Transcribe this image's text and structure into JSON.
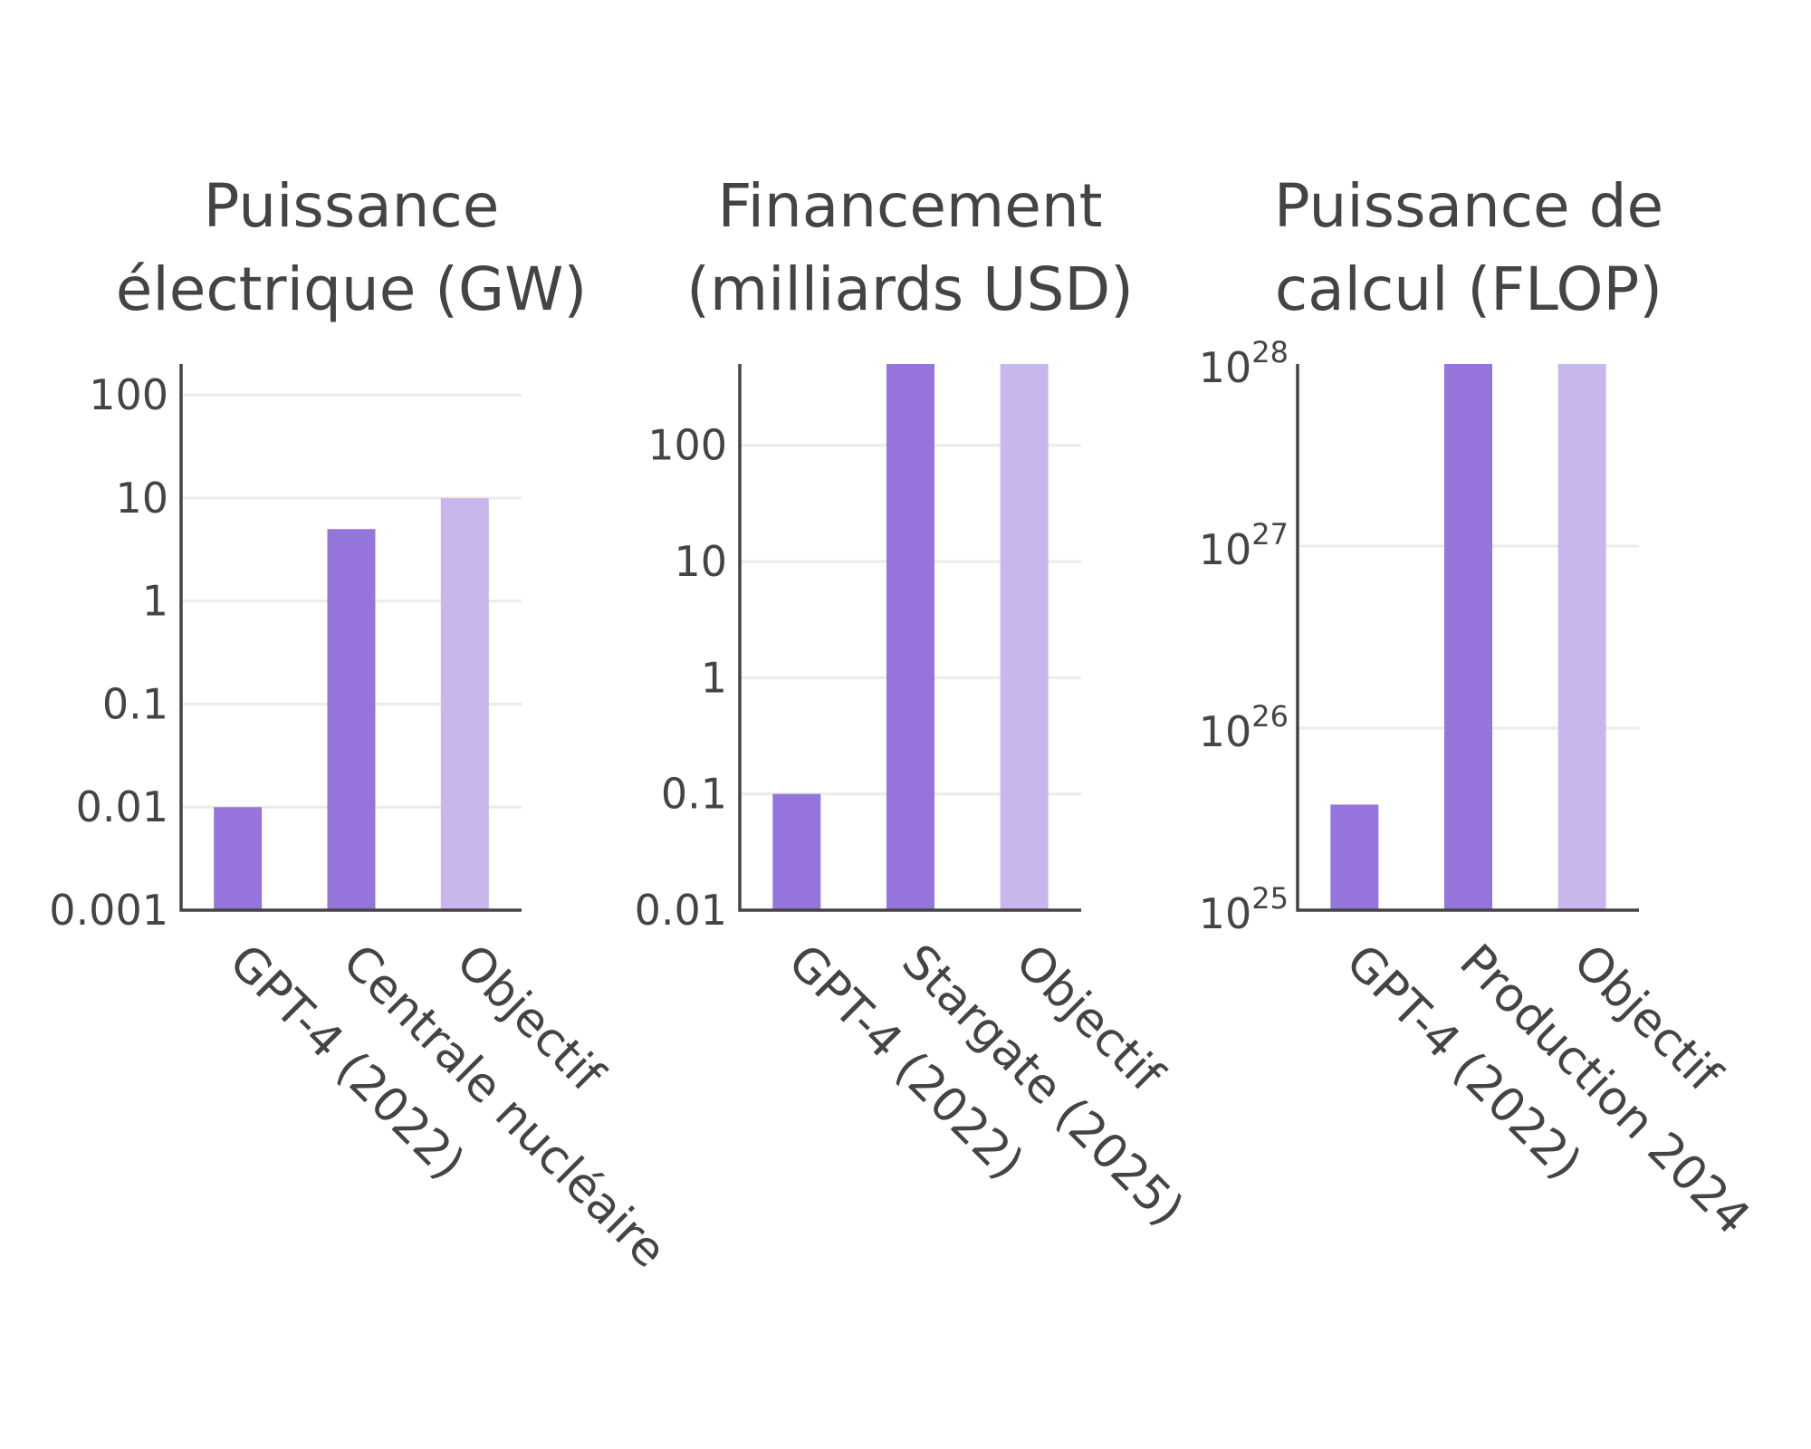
{
  "colors": {
    "primary": "#9575db",
    "target": "#c8b7ec",
    "text": "#444444",
    "grid": "#ebebeb"
  },
  "chart_data": [
    {
      "type": "bar",
      "title": [
        "Puissance",
        "électrique (GW)"
      ],
      "categories": [
        "GPT-4 (2022)",
        "Centrale nucléaire",
        "Objectif"
      ],
      "values": [
        0.01,
        5,
        10
      ],
      "ylog": true,
      "ylim": [
        0.001,
        200
      ],
      "yticks": [
        {
          "value": 0.001,
          "label": "0.001"
        },
        {
          "value": 0.01,
          "label": "0.01"
        },
        {
          "value": 0.1,
          "label": "0.1"
        },
        {
          "value": 1,
          "label": "1"
        },
        {
          "value": 10,
          "label": "10"
        },
        {
          "value": 100,
          "label": "100"
        }
      ],
      "grid": true
    },
    {
      "type": "bar",
      "title": [
        "Financement",
        "(milliards USD)"
      ],
      "categories": [
        "GPT-4 (2022)",
        "Stargate (2025)",
        "Objectif"
      ],
      "values": [
        0.1,
        500,
        500
      ],
      "ylog": true,
      "ylim": [
        0.01,
        500
      ],
      "yticks": [
        {
          "value": 0.01,
          "label": "0.01"
        },
        {
          "value": 0.1,
          "label": "0.1"
        },
        {
          "value": 1,
          "label": "1"
        },
        {
          "value": 10,
          "label": "10"
        },
        {
          "value": 100,
          "label": "100"
        }
      ],
      "grid": true
    },
    {
      "type": "bar",
      "title": [
        "Puissance de",
        "calcul (FLOP)"
      ],
      "categories": [
        "GPT-4 (2022)",
        "Production 2024",
        "Objectif"
      ],
      "values": [
        3.8e+25,
        1e+28,
        1e+28
      ],
      "ylog": true,
      "ylim": [
        1e+25,
        1e+28
      ],
      "yticks": [
        {
          "value": 1e+25,
          "base": "10",
          "exp": "25"
        },
        {
          "value": 1e+26,
          "base": "10",
          "exp": "26"
        },
        {
          "value": 1e+27,
          "base": "10",
          "exp": "27"
        },
        {
          "value": 1e+28,
          "base": "10",
          "exp": "28"
        }
      ],
      "grid": true
    }
  ]
}
